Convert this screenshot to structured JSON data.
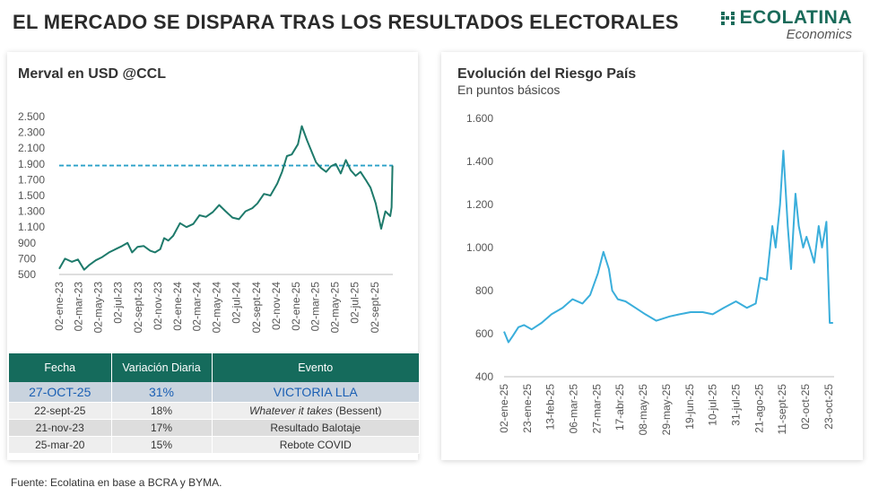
{
  "header": {
    "title": "EL MERCADO SE DISPARA TRAS LOS RESULTADOS ELECTORALES",
    "logo_main": "ECOLATINA",
    "logo_sub": "Economics"
  },
  "source": "Fuente: Ecolatina en base a BCRA y BYMA.",
  "table": {
    "headers": [
      "Fecha",
      "Variación Diaria",
      "Evento"
    ],
    "rows": [
      {
        "date": "27-OCT-25",
        "change": "31%",
        "event_pre": "",
        "event": "VICTORIA LLA"
      },
      {
        "date": "22-sept-25",
        "change": "18%",
        "event_pre": "Whatever it takes",
        "event": " (Bessent)"
      },
      {
        "date": "21-nov-23",
        "change": "17%",
        "event_pre": "",
        "event": "Resultado Balotaje"
      },
      {
        "date": "25-mar-20",
        "change": "15%",
        "event_pre": "",
        "event": "Rebote COVID"
      }
    ]
  },
  "colors": {
    "merval": "#1e7a6b",
    "riesgo": "#3aaedb",
    "reference": "#2aa0c8",
    "table_header": "#156b5c"
  },
  "chart_data": [
    {
      "type": "line",
      "title": "Merval en USD @CCL",
      "ylim": [
        500,
        2500
      ],
      "yticks": [
        500,
        700,
        900,
        1100,
        1300,
        1500,
        1700,
        1900,
        2100,
        2300,
        2500
      ],
      "ytick_labels": [
        "500",
        "700",
        "900",
        "1.100",
        "1.300",
        "1.500",
        "1.700",
        "1.900",
        "2.100",
        "2.300",
        "2.500"
      ],
      "xlim": [
        "2023-01-02",
        "2025-10-28"
      ],
      "xticks": [
        "2023-01-02",
        "2023-03-02",
        "2023-05-02",
        "2023-07-02",
        "2023-09-02",
        "2023-11-02",
        "2024-01-02",
        "2024-03-02",
        "2024-05-02",
        "2024-07-02",
        "2024-09-02",
        "2024-11-02",
        "2025-01-02",
        "2025-03-02",
        "2025-05-02",
        "2025-07-02",
        "2025-09-02"
      ],
      "xtick_labels": [
        "02-ene-23",
        "02-mar-23",
        "02-may-23",
        "02-jul-23",
        "02-sept-23",
        "02-nov-23",
        "02-ene-24",
        "02-mar-24",
        "02-may-24",
        "02-jul-24",
        "02-sept-24",
        "02-nov-24",
        "02-ene-25",
        "02-mar-25",
        "02-may-25",
        "02-jul-25",
        "02-sept-25"
      ],
      "reference_line": 1880,
      "series": [
        {
          "x": [
            "2023-01-02",
            "2023-01-20",
            "2023-02-10",
            "2023-03-01",
            "2023-03-20",
            "2023-04-05",
            "2023-04-25",
            "2023-05-15",
            "2023-06-05",
            "2023-06-25",
            "2023-07-15",
            "2023-08-01",
            "2023-08-15",
            "2023-09-01",
            "2023-09-20",
            "2023-10-10",
            "2023-10-25",
            "2023-11-10",
            "2023-11-22",
            "2023-12-05",
            "2023-12-20",
            "2024-01-10",
            "2024-01-30",
            "2024-02-20",
            "2024-03-10",
            "2024-03-30",
            "2024-04-20",
            "2024-05-10",
            "2024-05-30",
            "2024-06-20",
            "2024-07-10",
            "2024-07-30",
            "2024-08-20",
            "2024-09-05",
            "2024-09-25",
            "2024-10-15",
            "2024-11-05",
            "2024-11-20",
            "2024-12-05",
            "2024-12-20",
            "2025-01-08",
            "2025-01-20",
            "2025-02-05",
            "2025-02-20",
            "2025-03-05",
            "2025-03-20",
            "2025-04-05",
            "2025-04-20",
            "2025-05-05",
            "2025-05-20",
            "2025-06-05",
            "2025-06-20",
            "2025-07-05",
            "2025-07-20",
            "2025-08-05",
            "2025-08-20",
            "2025-09-05",
            "2025-09-22",
            "2025-10-05",
            "2025-10-20",
            "2025-10-24",
            "2025-10-27"
          ],
          "y": [
            570,
            700,
            660,
            690,
            560,
            620,
            680,
            720,
            780,
            820,
            860,
            900,
            780,
            850,
            860,
            800,
            780,
            820,
            960,
            930,
            990,
            1150,
            1100,
            1140,
            1250,
            1230,
            1290,
            1380,
            1300,
            1220,
            1200,
            1300,
            1340,
            1400,
            1520,
            1500,
            1650,
            1800,
            2000,
            2020,
            2150,
            2380,
            2200,
            2050,
            1920,
            1850,
            1800,
            1870,
            1900,
            1780,
            1950,
            1820,
            1750,
            1800,
            1700,
            1600,
            1400,
            1080,
            1300,
            1240,
            1350,
            1880
          ]
        }
      ]
    },
    {
      "type": "line",
      "title": "Evolución del Riesgo País",
      "subtitle": "En puntos básicos",
      "ylim": [
        400,
        1600
      ],
      "yticks": [
        400,
        600,
        800,
        1000,
        1200,
        1400,
        1600
      ],
      "ytick_labels": [
        "400",
        "600",
        "800",
        "1.000",
        "1.200",
        "1.400",
        "1.600"
      ],
      "xlim": [
        "2025-01-02",
        "2025-10-28"
      ],
      "xticks": [
        "2025-01-02",
        "2025-01-23",
        "2025-02-13",
        "2025-03-06",
        "2025-03-27",
        "2025-04-17",
        "2025-05-08",
        "2025-05-29",
        "2025-06-19",
        "2025-07-10",
        "2025-07-31",
        "2025-08-21",
        "2025-09-11",
        "2025-10-02",
        "2025-10-23"
      ],
      "xtick_labels": [
        "02-ene-25",
        "23-ene-25",
        "13-feb-25",
        "06-mar-25",
        "27-mar-25",
        "17-abr-25",
        "08-may-25",
        "29-may-25",
        "19-jun-25",
        "10-jul-25",
        "31-jul-25",
        "21-ago-25",
        "11-sept-25",
        "02-oct-25",
        "23-oct-25"
      ],
      "series": [
        {
          "x": [
            "2025-01-02",
            "2025-01-06",
            "2025-01-10",
            "2025-01-15",
            "2025-01-20",
            "2025-01-27",
            "2025-02-05",
            "2025-02-14",
            "2025-02-24",
            "2025-03-05",
            "2025-03-14",
            "2025-03-21",
            "2025-03-28",
            "2025-04-02",
            "2025-04-07",
            "2025-04-10",
            "2025-04-15",
            "2025-04-22",
            "2025-05-01",
            "2025-05-10",
            "2025-05-20",
            "2025-06-01",
            "2025-06-10",
            "2025-06-20",
            "2025-07-01",
            "2025-07-10",
            "2025-07-20",
            "2025-07-31",
            "2025-08-10",
            "2025-08-18",
            "2025-08-22",
            "2025-08-28",
            "2025-09-02",
            "2025-09-05",
            "2025-09-09",
            "2025-09-12",
            "2025-09-16",
            "2025-09-19",
            "2025-09-23",
            "2025-09-26",
            "2025-09-30",
            "2025-10-03",
            "2025-10-06",
            "2025-10-10",
            "2025-10-14",
            "2025-10-17",
            "2025-10-21",
            "2025-10-24",
            "2025-10-27"
          ],
          "y": [
            610,
            560,
            590,
            630,
            640,
            620,
            650,
            690,
            720,
            760,
            740,
            780,
            880,
            980,
            900,
            800,
            760,
            750,
            720,
            690,
            660,
            680,
            690,
            700,
            700,
            690,
            720,
            750,
            720,
            740,
            860,
            850,
            1100,
            1000,
            1200,
            1450,
            1100,
            900,
            1250,
            1100,
            1000,
            1050,
            1000,
            930,
            1100,
            1000,
            1120,
            650,
            650
          ]
        }
      ]
    }
  ]
}
